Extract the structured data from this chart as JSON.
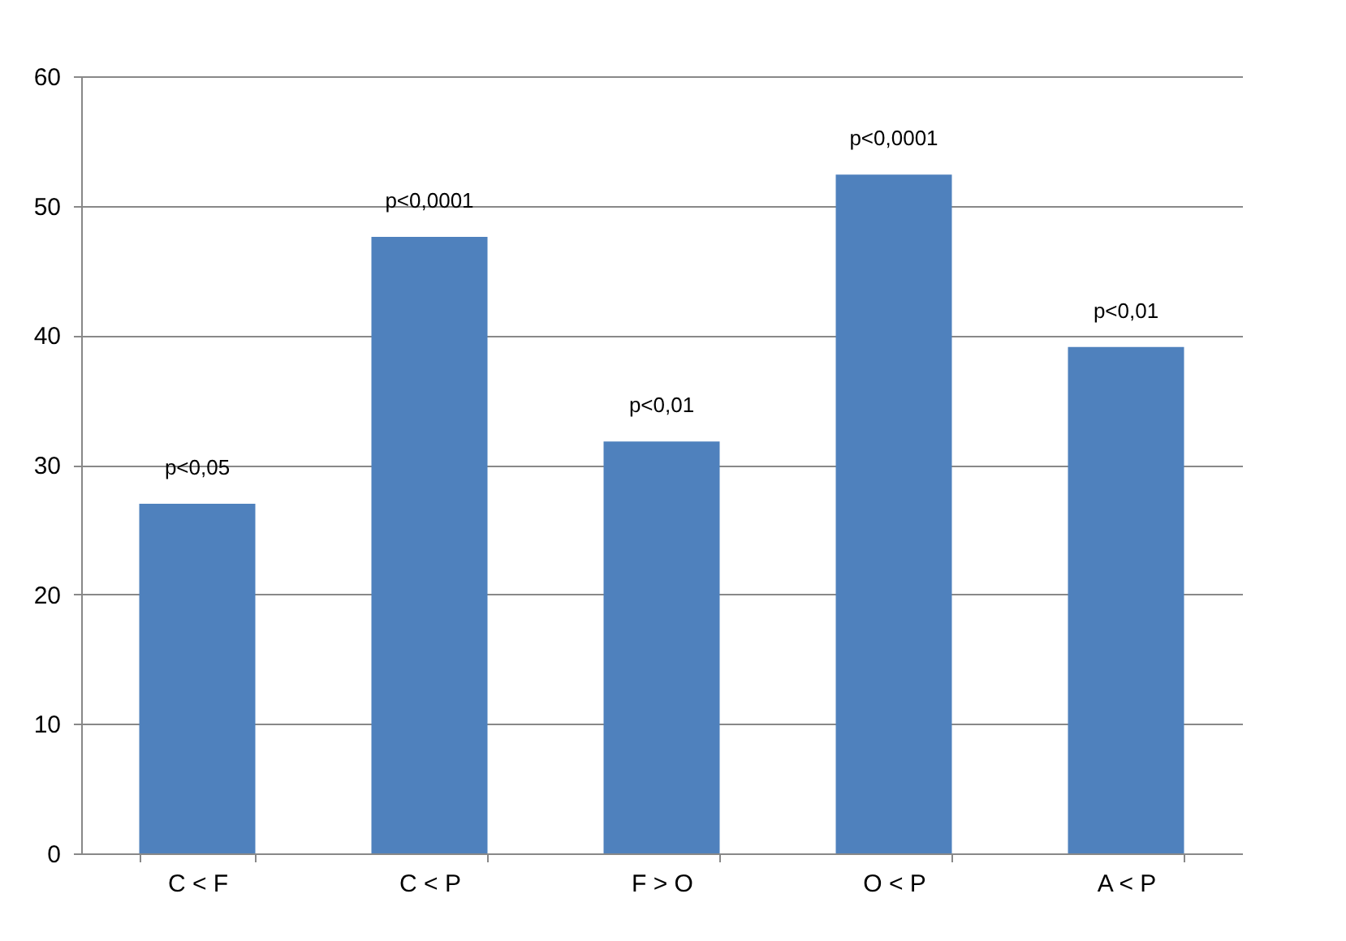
{
  "chart_data": {
    "type": "bar",
    "categories": [
      "C < F",
      "C < P",
      "F > O",
      "O < P",
      "A < P"
    ],
    "values": [
      27,
      47.6,
      31.8,
      52.4,
      39.1
    ],
    "color": "#4f81bd",
    "ylim": [
      0,
      60
    ],
    "yticks": [
      0,
      10,
      20,
      30,
      40,
      50,
      60
    ],
    "grid": "y",
    "annotations": [
      {
        "text": "p<0,05",
        "x": "C < F",
        "y": 27
      },
      {
        "text": "p<0,0001",
        "x": "C < P",
        "y": 47.6
      },
      {
        "text": "p<0,01",
        "x": "F > O",
        "y": 31.8
      },
      {
        "text": "p<0,0001",
        "x": "O < P",
        "y": 52.4
      },
      {
        "text": "p<0,01",
        "x": "A < P",
        "y": 39.1
      }
    ]
  }
}
